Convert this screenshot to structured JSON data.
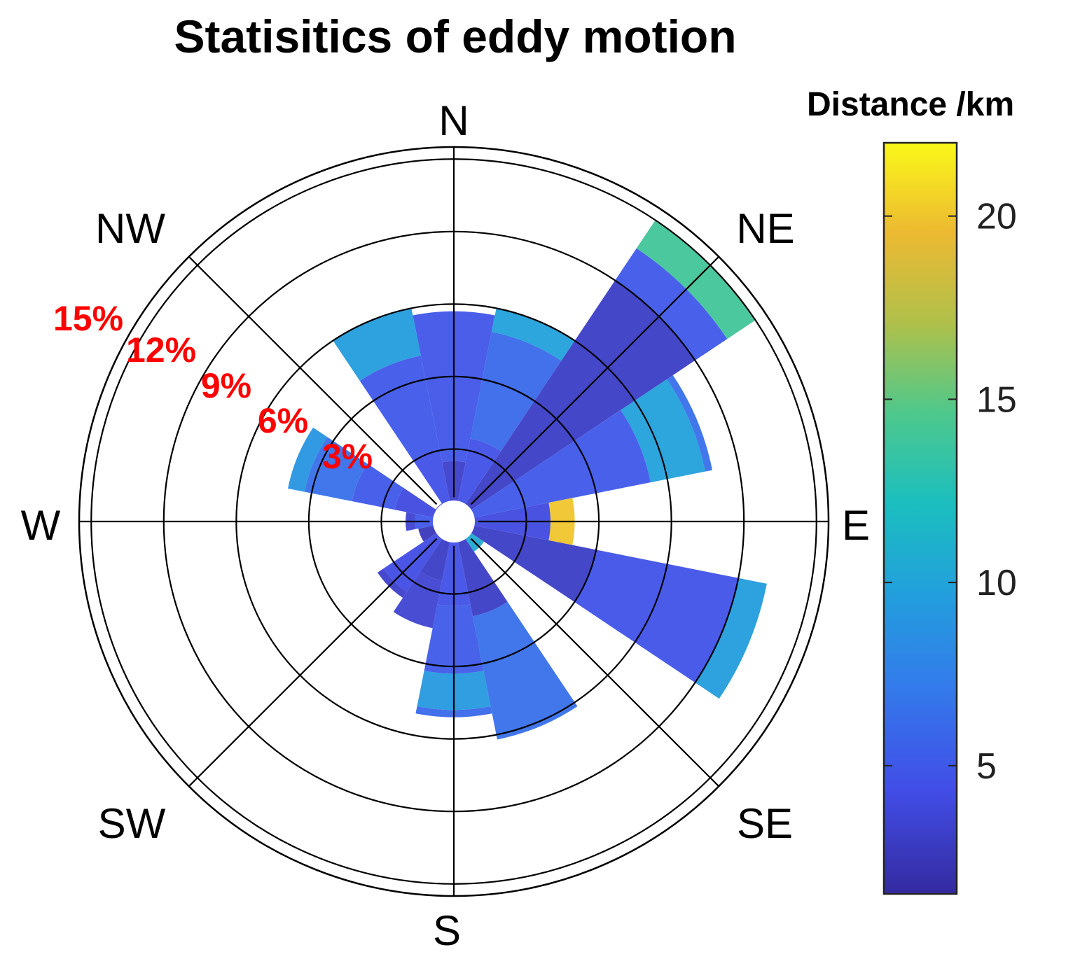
{
  "chart_data": {
    "type": "polar-stacked-bar",
    "title": "Statisitics of eddy motion",
    "directions": [
      "N",
      "NE",
      "E",
      "SE",
      "S",
      "SW",
      "W",
      "NW"
    ],
    "radial_ticks": [
      "3%",
      "6%",
      "9%",
      "12%",
      "15%"
    ],
    "radial_tick_values": [
      3,
      6,
      9,
      12,
      15
    ],
    "rmax_percent": 15.5,
    "hole_percent": 0.6,
    "colorbar": {
      "label": "Distance /km",
      "ticks": [
        5,
        10,
        15,
        20
      ],
      "range": [
        1.5,
        22
      ]
    },
    "sector_width_deg": 22.5,
    "bins": [
      {
        "center_deg": 0,
        "segments": [
          {
            "upper_pct": 2.5,
            "distance_km": 3.2
          },
          {
            "upper_pct": 8.7,
            "distance_km": 4.8
          }
        ]
      },
      {
        "center_deg": 22.5,
        "segments": [
          {
            "upper_pct": 3.5,
            "distance_km": 4.5
          },
          {
            "upper_pct": 8.0,
            "distance_km": 6.0
          },
          {
            "upper_pct": 9.0,
            "distance_km": 9.8
          }
        ]
      },
      {
        "center_deg": 45,
        "segments": [
          {
            "upper_pct": 12.0,
            "distance_km": 3.0
          },
          {
            "upper_pct": 13.6,
            "distance_km": 5.0
          },
          {
            "upper_pct": 15.0,
            "distance_km": 14.0
          }
        ]
      },
      {
        "center_deg": 67.5,
        "segments": [
          {
            "upper_pct": 8.3,
            "distance_km": 5.0
          },
          {
            "upper_pct": 10.6,
            "distance_km": 9.8
          },
          {
            "upper_pct": 10.9,
            "distance_km": 6.5
          }
        ]
      },
      {
        "center_deg": 90,
        "segments": [
          {
            "upper_pct": 4.0,
            "distance_km": 4.0
          },
          {
            "upper_pct": 5.0,
            "distance_km": 20.0
          }
        ]
      },
      {
        "center_deg": 112.5,
        "segments": [
          {
            "upper_pct": 6.0,
            "distance_km": 3.0
          },
          {
            "upper_pct": 12.0,
            "distance_km": 4.6
          },
          {
            "upper_pct": 13.2,
            "distance_km": 9.5
          }
        ]
      },
      {
        "center_deg": 135,
        "segments": [
          {
            "upper_pct": 1.5,
            "distance_km": 10.5
          }
        ]
      },
      {
        "center_deg": 157.5,
        "segments": [
          {
            "upper_pct": 4.0,
            "distance_km": 3.0
          },
          {
            "upper_pct": 9.2,
            "distance_km": 6.5
          }
        ]
      },
      {
        "center_deg": 180,
        "segments": [
          {
            "upper_pct": 3.5,
            "distance_km": 4.5
          },
          {
            "upper_pct": 6.3,
            "distance_km": 5.2
          },
          {
            "upper_pct": 7.8,
            "distance_km": 9.3
          },
          {
            "upper_pct": 8.1,
            "distance_km": 6.0
          }
        ]
      },
      {
        "center_deg": 202.5,
        "segments": [
          {
            "upper_pct": 2.5,
            "distance_km": 3.0
          },
          {
            "upper_pct": 4.5,
            "distance_km": 3.5
          }
        ]
      },
      {
        "center_deg": 225,
        "segments": [
          {
            "upper_pct": 3.5,
            "distance_km": 4.2
          },
          {
            "upper_pct": 3.8,
            "distance_km": 3.2
          }
        ]
      },
      {
        "center_deg": 247.5,
        "segments": [
          {
            "upper_pct": 1.5,
            "distance_km": 2.5
          }
        ]
      },
      {
        "center_deg": 270,
        "segments": [
          {
            "upper_pct": 1.6,
            "distance_km": 5.0
          },
          {
            "upper_pct": 2.0,
            "distance_km": 3.5
          }
        ]
      },
      {
        "center_deg": 292.5,
        "segments": [
          {
            "upper_pct": 2.5,
            "distance_km": 4.0
          },
          {
            "upper_pct": 4.3,
            "distance_km": 5.0
          },
          {
            "upper_pct": 6.3,
            "distance_km": 6.5
          },
          {
            "upper_pct": 7.0,
            "distance_km": 9.0
          }
        ]
      },
      {
        "center_deg": 315,
        "segments": [
          {
            "upper_pct": 0.9,
            "distance_km": 4.0
          }
        ]
      },
      {
        "center_deg": 337.5,
        "segments": [
          {
            "upper_pct": 3.0,
            "distance_km": 4.5
          },
          {
            "upper_pct": 7.0,
            "distance_km": 5.0
          },
          {
            "upper_pct": 7.0,
            "distance_km": 5.5
          },
          {
            "upper_pct": 9.0,
            "distance_km": 9.5
          }
        ]
      }
    ]
  }
}
